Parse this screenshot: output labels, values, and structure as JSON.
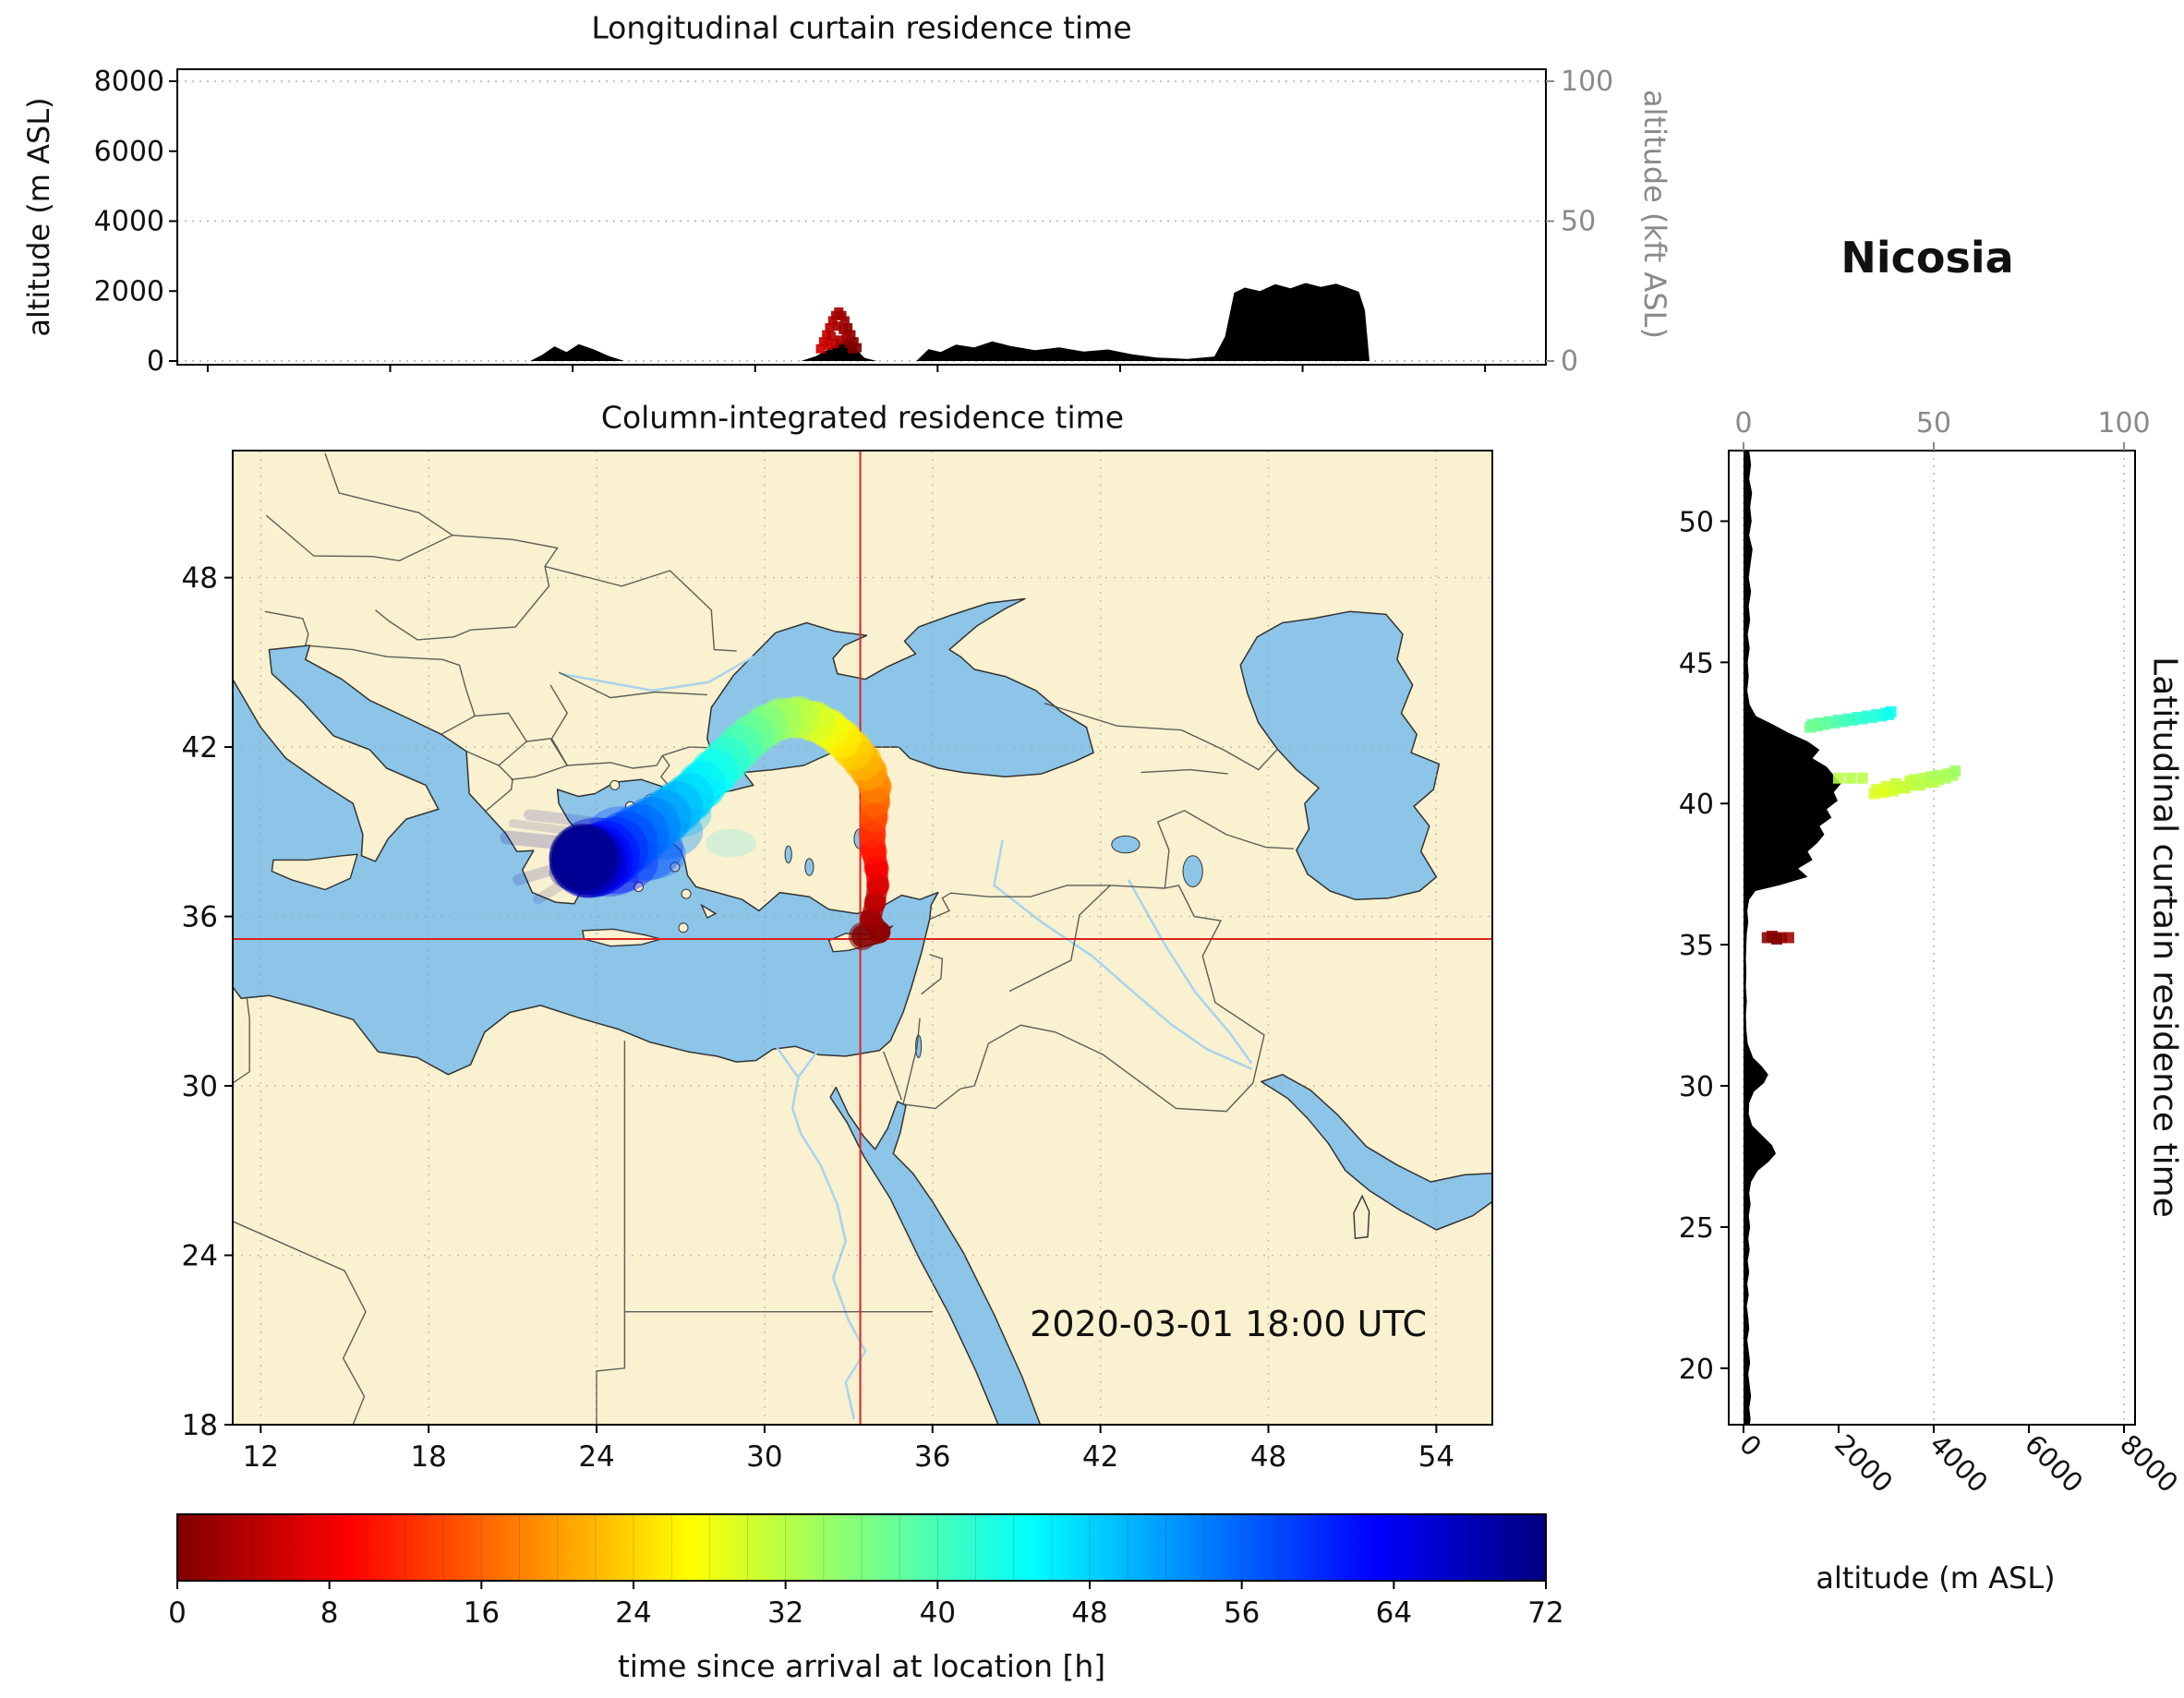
{
  "station": "Nicosia",
  "colors": {
    "land": "#f9f1cf",
    "sea": "#8cc5e8",
    "coast": "#333333",
    "border": "#444444",
    "terrain": "#000000",
    "crosshair": "#dd2222",
    "grid": "#999999",
    "kft_axis": "#8a8a8a",
    "frame": "#000000",
    "river": "#a8d4ee"
  },
  "chart_data": [
    {
      "id": "longitudinal-curtain",
      "type": "area",
      "title": "Longitudinal curtain residence time",
      "ylabel_left": "altitude (m ASL)",
      "ylabel_right": "altitude (kft ASL)",
      "yticks_m": [
        0,
        2000,
        4000,
        6000,
        8000
      ],
      "yticks_kft": [
        0,
        50,
        100
      ],
      "xlim_lon": [
        11,
        56
      ],
      "ylim_m": [
        0,
        8400
      ],
      "terrain_lon_elev": [
        [
          11,
          0
        ],
        [
          22.6,
          0
        ],
        [
          23,
          180
        ],
        [
          23.4,
          420
        ],
        [
          23.8,
          260
        ],
        [
          24.2,
          480
        ],
        [
          24.7,
          330
        ],
        [
          25.2,
          140
        ],
        [
          25.7,
          0
        ],
        [
          31.5,
          0
        ],
        [
          32,
          140
        ],
        [
          32.5,
          380
        ],
        [
          33,
          640
        ],
        [
          33.3,
          360
        ],
        [
          33.6,
          90
        ],
        [
          34,
          0
        ],
        [
          35.3,
          0
        ],
        [
          35.7,
          340
        ],
        [
          36.1,
          260
        ],
        [
          36.6,
          470
        ],
        [
          37.2,
          390
        ],
        [
          37.8,
          560
        ],
        [
          38.4,
          430
        ],
        [
          39.2,
          310
        ],
        [
          40,
          390
        ],
        [
          40.8,
          270
        ],
        [
          41.6,
          330
        ],
        [
          42.4,
          190
        ],
        [
          43.2,
          100
        ],
        [
          44.2,
          60
        ],
        [
          45.1,
          130
        ],
        [
          45.45,
          700
        ],
        [
          45.75,
          1950
        ],
        [
          46.1,
          2100
        ],
        [
          46.6,
          2000
        ],
        [
          47.1,
          2200
        ],
        [
          47.6,
          2080
        ],
        [
          48.1,
          2230
        ],
        [
          48.6,
          2120
        ],
        [
          49.1,
          2210
        ],
        [
          49.5,
          2090
        ],
        [
          49.85,
          1980
        ],
        [
          50.05,
          1450
        ],
        [
          50.2,
          0
        ],
        [
          56,
          0
        ]
      ],
      "residence_cells_lon_alt_h": [
        [
          32.15,
          350,
          6
        ],
        [
          32.25,
          550,
          5
        ],
        [
          32.35,
          750,
          5
        ],
        [
          32.45,
          950,
          4
        ],
        [
          32.55,
          1150,
          4
        ],
        [
          32.65,
          1300,
          3
        ],
        [
          32.75,
          1400,
          3
        ],
        [
          32.85,
          1300,
          2
        ],
        [
          32.95,
          1150,
          2
        ],
        [
          33.05,
          950,
          1
        ],
        [
          33.15,
          750,
          1
        ],
        [
          33.25,
          550,
          0
        ],
        [
          33.35,
          380,
          0
        ],
        [
          32.5,
          700,
          4
        ],
        [
          32.7,
          1000,
          3
        ],
        [
          32.9,
          900,
          2
        ],
        [
          33.1,
          500,
          1
        ],
        [
          32.6,
          500,
          4
        ],
        [
          33.0,
          700,
          2
        ],
        [
          32.8,
          600,
          3
        ],
        [
          32.4,
          450,
          5
        ],
        [
          33.2,
          350,
          0
        ]
      ]
    },
    {
      "id": "column-integrated-map",
      "type": "heatmap",
      "title": "Column-integrated residence time",
      "datetime_label": "2020-03-01 18:00 UTC",
      "lon_range": [
        11,
        56
      ],
      "lat_range": [
        18,
        52.5
      ],
      "xticks": [
        12,
        18,
        24,
        30,
        36,
        42,
        48,
        54
      ],
      "yticks": [
        18,
        24,
        30,
        36,
        42,
        48
      ],
      "receptor": {
        "name": "Nicosia",
        "lon": 33.42,
        "lat": 35.2
      },
      "plume_lon_lat_h_spread": [
        [
          33.5,
          35.3,
          0,
          0.5
        ],
        [
          34.1,
          35.45,
          1,
          0.4
        ],
        [
          33.8,
          35.9,
          2,
          0.4
        ],
        [
          33.95,
          36.5,
          4,
          0.4
        ],
        [
          34.05,
          37.1,
          6,
          0.42
        ],
        [
          34.0,
          37.7,
          8,
          0.45
        ],
        [
          33.9,
          38.3,
          10,
          0.48
        ],
        [
          33.85,
          38.9,
          12,
          0.5
        ],
        [
          33.9,
          39.5,
          14,
          0.52
        ],
        [
          33.95,
          40.05,
          16,
          0.55
        ],
        [
          33.95,
          40.6,
          18,
          0.6
        ],
        [
          33.75,
          41.1,
          20,
          0.65
        ],
        [
          33.5,
          41.5,
          22,
          0.7
        ],
        [
          33.15,
          41.9,
          24,
          0.72
        ],
        [
          32.75,
          42.3,
          26,
          0.72
        ],
        [
          32.3,
          42.65,
          28,
          0.73
        ],
        [
          31.8,
          42.9,
          30,
          0.75
        ],
        [
          31.2,
          43.05,
          32,
          0.77
        ],
        [
          30.6,
          43.0,
          34,
          0.77
        ],
        [
          30.05,
          42.75,
          36,
          0.78
        ],
        [
          29.55,
          42.4,
          38,
          0.8
        ],
        [
          29.1,
          42.0,
          40,
          0.82
        ],
        [
          28.65,
          41.55,
          42,
          0.84
        ],
        [
          28.2,
          41.1,
          44,
          0.86
        ],
        [
          27.75,
          40.65,
          46,
          0.88
        ],
        [
          27.3,
          40.2,
          48,
          0.9
        ],
        [
          26.85,
          39.85,
          50,
          0.95
        ],
        [
          26.4,
          39.5,
          52,
          1.0
        ],
        [
          25.95,
          39.2,
          54,
          1.05
        ],
        [
          25.5,
          38.9,
          56,
          1.1
        ],
        [
          25.05,
          38.6,
          58,
          1.15
        ],
        [
          24.65,
          38.35,
          60,
          1.2
        ],
        [
          24.3,
          38.15,
          62,
          1.25
        ],
        [
          24.0,
          38.0,
          64,
          1.3
        ],
        [
          23.8,
          37.95,
          66,
          1.3
        ],
        [
          23.65,
          37.95,
          68,
          1.3
        ],
        [
          23.55,
          38.0,
          70,
          1.25
        ],
        [
          23.5,
          38.1,
          72,
          1.2
        ]
      ],
      "dispersion_blobs": [
        [
          26.3,
          39.0,
          53,
          1.5,
          1.0,
          0.35
        ],
        [
          25.4,
          38.4,
          58,
          1.7,
          1.2,
          0.4
        ],
        [
          24.6,
          37.9,
          62,
          1.6,
          1.1,
          0.4
        ],
        [
          24.0,
          38.5,
          66,
          1.4,
          1.0,
          0.4
        ],
        [
          25.9,
          38.2,
          57,
          1.3,
          0.9,
          0.3
        ],
        [
          24.9,
          39.1,
          59,
          1.2,
          0.8,
          0.3
        ],
        [
          26.9,
          39.6,
          50,
          1.2,
          0.8,
          0.3
        ],
        [
          23.3,
          37.6,
          70,
          1.0,
          0.7,
          0.35
        ],
        [
          24.4,
          37.3,
          64,
          1.1,
          0.6,
          0.3
        ],
        [
          28.8,
          38.6,
          47,
          0.9,
          0.5,
          0.15
        ]
      ],
      "faint_streaks": [
        [
          23.8,
          38.5,
          20.8,
          38.8,
          70,
          0.25,
          0.18
        ],
        [
          23.6,
          38.0,
          21.2,
          37.3,
          71,
          0.2,
          0.15
        ],
        [
          24.2,
          39.3,
          21.6,
          39.6,
          69,
          0.2,
          0.15
        ],
        [
          23.2,
          37.4,
          21.9,
          36.6,
          72,
          0.18,
          0.12
        ],
        [
          24.0,
          38.9,
          21.0,
          39.3,
          71,
          0.15,
          0.12
        ]
      ]
    },
    {
      "id": "latitudinal-curtain",
      "type": "area",
      "ylabel": "Latitudinal curtain residence time",
      "xlabel": "altitude (m ASL)",
      "xticks_m": [
        0,
        2000,
        4000,
        6000,
        8000
      ],
      "xticks_kft": [
        0,
        50,
        100
      ],
      "yticks_lat": [
        20,
        25,
        30,
        35,
        40,
        45,
        50
      ],
      "xlim_m": [
        0,
        8400
      ],
      "terrain_lat_elev": [
        [
          52.5,
          120
        ],
        [
          52,
          160
        ],
        [
          51.5,
          120
        ],
        [
          51,
          180
        ],
        [
          50.5,
          140
        ],
        [
          50,
          170
        ],
        [
          49.5,
          120
        ],
        [
          49,
          190
        ],
        [
          48.5,
          150
        ],
        [
          48,
          110
        ],
        [
          47.5,
          160
        ],
        [
          47,
          110
        ],
        [
          46.5,
          140
        ],
        [
          46,
          90
        ],
        [
          45.5,
          130
        ],
        [
          45,
          90
        ],
        [
          44.5,
          110
        ],
        [
          44,
          80
        ],
        [
          43.5,
          130
        ],
        [
          43.1,
          260
        ],
        [
          42.8,
          620
        ],
        [
          42.5,
          950
        ],
        [
          42.2,
          1350
        ],
        [
          41.9,
          1600
        ],
        [
          41.6,
          1450
        ],
        [
          41.3,
          1750
        ],
        [
          41,
          1900
        ],
        [
          40.7,
          2050
        ],
        [
          40.4,
          1900
        ],
        [
          40.1,
          1980
        ],
        [
          39.8,
          1750
        ],
        [
          39.5,
          1850
        ],
        [
          39.2,
          1600
        ],
        [
          38.9,
          1700
        ],
        [
          38.6,
          1550
        ],
        [
          38.3,
          1350
        ],
        [
          38,
          1450
        ],
        [
          37.7,
          1150
        ],
        [
          37.4,
          1350
        ],
        [
          37.1,
          750
        ],
        [
          36.9,
          250
        ],
        [
          36.6,
          120
        ],
        [
          36.2,
          80
        ],
        [
          35.8,
          100
        ],
        [
          35.4,
          70
        ],
        [
          35,
          60
        ],
        [
          34.5,
          50
        ],
        [
          34,
          60
        ],
        [
          33.5,
          50
        ],
        [
          33,
          70
        ],
        [
          32.5,
          50
        ],
        [
          32,
          60
        ],
        [
          31.5,
          90
        ],
        [
          31,
          200
        ],
        [
          30.7,
          380
        ],
        [
          30.4,
          520
        ],
        [
          30.1,
          430
        ],
        [
          29.8,
          220
        ],
        [
          29.4,
          120
        ],
        [
          29,
          110
        ],
        [
          28.6,
          180
        ],
        [
          28.2,
          420
        ],
        [
          27.9,
          600
        ],
        [
          27.6,
          680
        ],
        [
          27.3,
          520
        ],
        [
          27,
          300
        ],
        [
          26.6,
          160
        ],
        [
          26.2,
          120
        ],
        [
          25.8,
          150
        ],
        [
          25.4,
          110
        ],
        [
          25,
          140
        ],
        [
          24.6,
          100
        ],
        [
          24.2,
          130
        ],
        [
          23.8,
          90
        ],
        [
          23.4,
          120
        ],
        [
          23,
          80
        ],
        [
          22.6,
          110
        ],
        [
          22.2,
          70
        ],
        [
          21.8,
          100
        ],
        [
          21.4,
          120
        ],
        [
          21,
          80
        ],
        [
          20.6,
          110
        ],
        [
          20.2,
          140
        ],
        [
          19.8,
          100
        ],
        [
          19.4,
          130
        ],
        [
          19,
          160
        ],
        [
          18.6,
          120
        ],
        [
          18.2,
          150
        ],
        [
          18,
          130
        ]
      ],
      "residence_cells_lat_alt_h": [
        [
          43.2,
          3000,
          43
        ],
        [
          43.15,
          2800,
          43
        ],
        [
          43.1,
          2600,
          42
        ],
        [
          43.05,
          2400,
          42
        ],
        [
          43.0,
          2200,
          41
        ],
        [
          42.95,
          2000,
          40
        ],
        [
          42.9,
          1800,
          39
        ],
        [
          42.85,
          1600,
          38
        ],
        [
          42.8,
          1450,
          38
        ],
        [
          43.25,
          3100,
          44
        ],
        [
          43.1,
          2900,
          43
        ],
        [
          43.0,
          2500,
          42
        ],
        [
          42.9,
          2100,
          40
        ],
        [
          43.05,
          2700,
          42
        ],
        [
          42.95,
          2300,
          41
        ],
        [
          42.85,
          1900,
          39
        ],
        [
          42.75,
          1550,
          37
        ],
        [
          42.7,
          1400,
          37
        ],
        [
          43.15,
          3050,
          44
        ],
        [
          42.8,
          1700,
          38
        ],
        [
          40.35,
          2750,
          29
        ],
        [
          40.45,
          2900,
          30
        ],
        [
          40.5,
          3050,
          30
        ],
        [
          40.55,
          3200,
          30
        ],
        [
          40.6,
          3350,
          31
        ],
        [
          40.65,
          3500,
          31
        ],
        [
          40.7,
          3650,
          31
        ],
        [
          40.75,
          3800,
          32
        ],
        [
          40.8,
          3950,
          32
        ],
        [
          40.85,
          4100,
          32
        ],
        [
          40.9,
          4250,
          33
        ],
        [
          41.0,
          4400,
          33
        ],
        [
          40.5,
          2800,
          30
        ],
        [
          40.6,
          3000,
          30
        ],
        [
          40.7,
          3200,
          31
        ],
        [
          40.8,
          3500,
          31
        ],
        [
          40.9,
          3800,
          32
        ],
        [
          41.0,
          4100,
          33
        ],
        [
          41.05,
          4300,
          33
        ],
        [
          40.4,
          2950,
          29
        ],
        [
          40.55,
          3400,
          31
        ],
        [
          40.65,
          3700,
          32
        ],
        [
          40.75,
          4000,
          32
        ],
        [
          40.85,
          3600,
          32
        ],
        [
          40.95,
          3950,
          33
        ],
        [
          40.45,
          3150,
          30
        ],
        [
          40.9,
          2000,
          32
        ],
        [
          40.9,
          2250,
          32
        ],
        [
          40.9,
          2500,
          32
        ],
        [
          41.15,
          4450,
          34
        ],
        [
          35.25,
          500,
          0
        ],
        [
          35.25,
          650,
          0
        ],
        [
          35.25,
          800,
          1
        ],
        [
          35.3,
          600,
          1
        ],
        [
          35.2,
          700,
          0
        ],
        [
          35.25,
          950,
          2
        ]
      ]
    },
    {
      "id": "colorbar",
      "type": "heatmap",
      "label": "time since arrival at location [h]",
      "ticks": [
        0,
        8,
        16,
        24,
        32,
        40,
        48,
        56,
        64,
        72
      ],
      "range": [
        0,
        72
      ],
      "segments": 36,
      "stops": [
        [
          0,
          "#800000"
        ],
        [
          0.125,
          "#ff0000"
        ],
        [
          0.375,
          "#ffff00"
        ],
        [
          0.625,
          "#00ffff"
        ],
        [
          0.875,
          "#0000ff"
        ],
        [
          1,
          "#000080"
        ]
      ]
    }
  ]
}
